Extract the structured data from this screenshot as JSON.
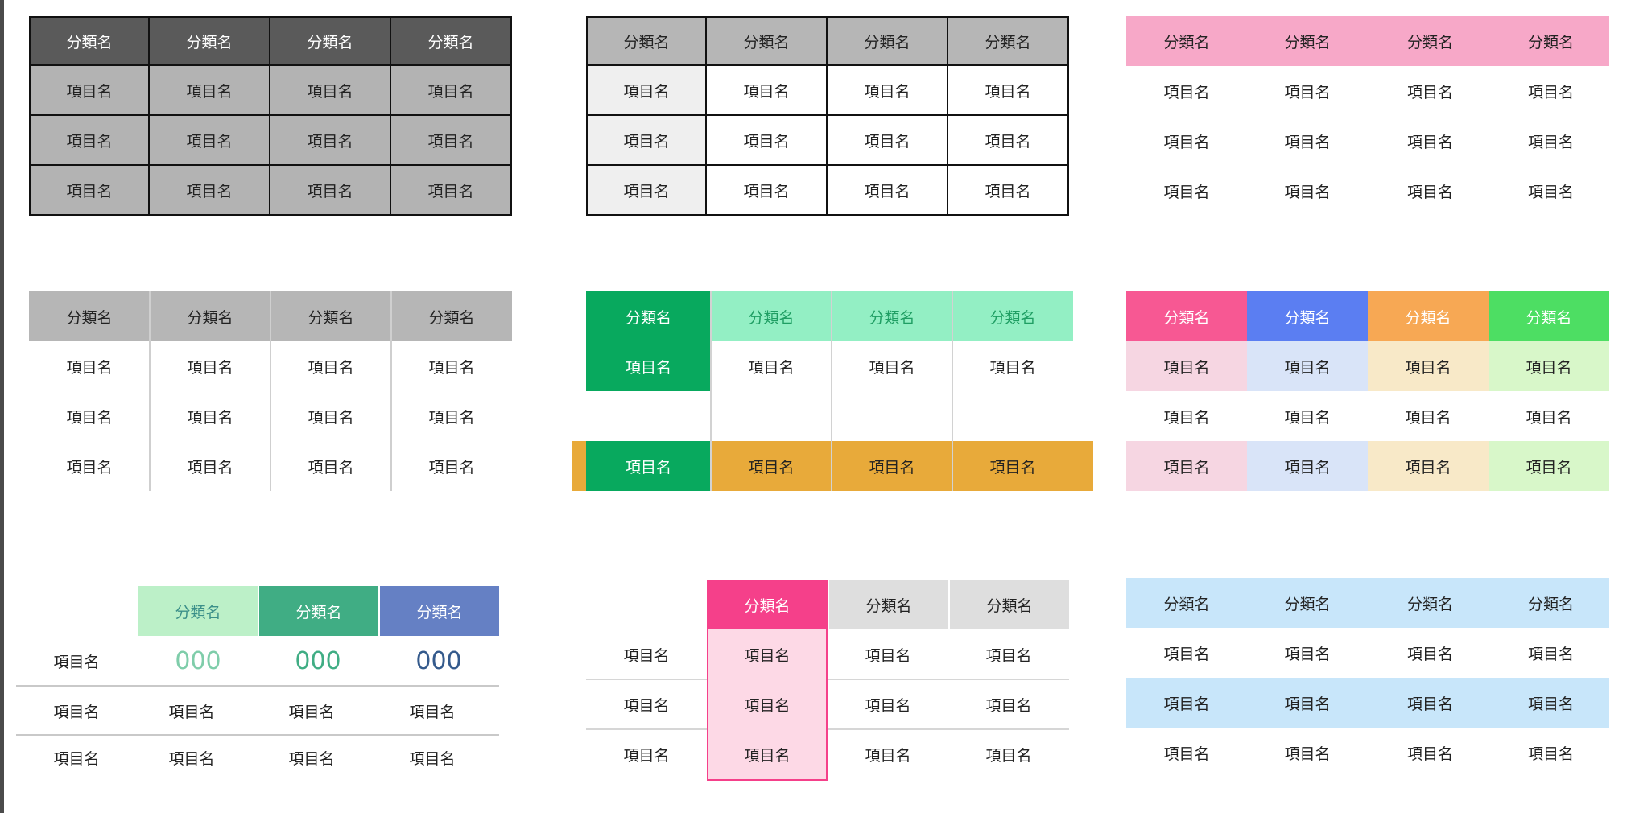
{
  "labels": {
    "header": "分類名",
    "item": "項目名",
    "value": "000"
  },
  "colors": {
    "t1_header_bg": "#5a5a5a",
    "t1_body_bg": "#b3b3b3",
    "t2_header_bg": "#b6b6b6",
    "t2_first_col_bg": "#efefef",
    "t3_header_bg": "#f7a8c8",
    "t4_header_bg": "#b6b6b6",
    "t5_green_dark": "#08a95e",
    "t5_green_light": "#93efc4",
    "t5_green_text": "#1f9e63",
    "t5_orange": "#e8aa3a",
    "t6_header_colors": [
      "#f75893",
      "#5b7ef2",
      "#f7a854",
      "#4dde63"
    ],
    "t6_row_tints": [
      "#f6d6e2",
      "#d9e4f8",
      "#f8e9c8",
      "#d8f7c9"
    ],
    "t7_header_colors": [
      "#bcf0c8",
      "#40ad84",
      "#6580c4"
    ],
    "t7_header_text_colors": [
      "#3b8f89",
      "#ffffff",
      "#ffffff"
    ],
    "t7_value_colors": [
      "#7fcdaa",
      "#40ad84",
      "#345a8c"
    ],
    "t8_pink": "#f5408a",
    "t8_pink_light": "#fdd9e6",
    "t8_gray_header": "#dedede",
    "t9_band": "#c8e6fa"
  }
}
